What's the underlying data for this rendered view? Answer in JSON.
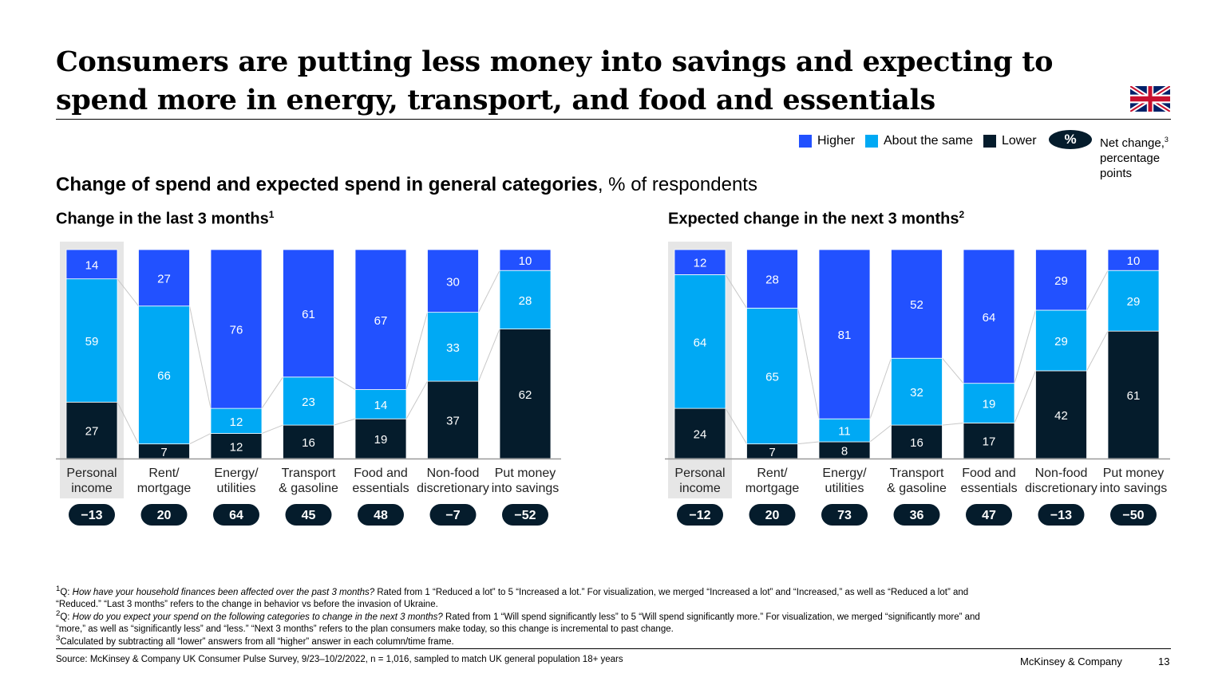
{
  "title": "Consumers are putting less money into savings and expecting to spend more in energy, transport, and food and essentials",
  "subtitle_bold": "Change of spend and expected spend in general categories",
  "subtitle_rest": ", % of respondents",
  "legend": {
    "higher": "Higher",
    "same": "About the same",
    "lower": "Lower",
    "pill": "%",
    "net_label": "Net change,",
    "net_sup": "3",
    "net_label2": "percentage points"
  },
  "colors": {
    "higher": "#2251ff",
    "same": "#00a9f4",
    "lower": "#051c2c",
    "highlight": "#e6e6e6",
    "connector": "#c8c8c8"
  },
  "chart_data": [
    {
      "type": "bar",
      "stacked": true,
      "title": "Change in the last 3 months",
      "title_sup": "1",
      "categories": [
        "Personal income",
        "Rent/ mortgage",
        "Energy/ utilities",
        "Transport & gasoline",
        "Food and essentials",
        "Non-food discretionary",
        "Put money into savings"
      ],
      "category_lines": [
        [
          "Personal",
          "income"
        ],
        [
          "Rent/",
          "mortgage"
        ],
        [
          "Energy/",
          "utilities"
        ],
        [
          "Transport",
          "& gasoline"
        ],
        [
          "Food and",
          "essentials"
        ],
        [
          "Non-food",
          "discretionary"
        ],
        [
          "Put money",
          "into savings"
        ]
      ],
      "highlighted_category": "Personal income",
      "series": [
        {
          "name": "Lower",
          "values": [
            27,
            7,
            12,
            16,
            19,
            37,
            62
          ]
        },
        {
          "name": "About the same",
          "values": [
            59,
            66,
            12,
            23,
            14,
            33,
            28
          ]
        },
        {
          "name": "Higher",
          "values": [
            14,
            27,
            76,
            61,
            67,
            30,
            10
          ]
        }
      ],
      "net_change": [
        "−13",
        "20",
        "64",
        "45",
        "48",
        "−7",
        "−52"
      ]
    },
    {
      "type": "bar",
      "stacked": true,
      "title": "Expected change in the next 3 months",
      "title_sup": "2",
      "categories": [
        "Personal income",
        "Rent/ mortgage",
        "Energy/ utilities",
        "Transport & gasoline",
        "Food and essentials",
        "Non-food discretionary",
        "Put money into savings"
      ],
      "category_lines": [
        [
          "Personal",
          "income"
        ],
        [
          "Rent/",
          "mortgage"
        ],
        [
          "Energy/",
          "utilities"
        ],
        [
          "Transport",
          "& gasoline"
        ],
        [
          "Food and",
          "essentials"
        ],
        [
          "Non-food",
          "discretionary"
        ],
        [
          "Put money",
          "into savings"
        ]
      ],
      "highlighted_category": "Personal income",
      "series": [
        {
          "name": "Lower",
          "values": [
            24,
            7,
            8,
            16,
            17,
            42,
            61
          ]
        },
        {
          "name": "About the same",
          "values": [
            64,
            65,
            11,
            32,
            19,
            29,
            29
          ]
        },
        {
          "name": "Higher",
          "values": [
            12,
            28,
            81,
            52,
            64,
            29,
            10
          ]
        }
      ],
      "net_change": [
        "−12",
        "20",
        "73",
        "36",
        "47",
        "−13",
        "−50"
      ]
    }
  ],
  "footnotes": [
    {
      "sup": "1",
      "prefix": "Q: ",
      "italic": "How have your household finances been affected over the past 3 months?",
      "text": " Rated from 1 “Reduced a lot” to 5 “Increased a lot.” For visualization, we merged “Increased a lot” and “Increased,” as well as “Reduced a lot” and “Reduced.” “Last 3 months” refers to the change in behavior vs before the invasion of Ukraine."
    },
    {
      "sup": "2",
      "prefix": "Q: ",
      "italic": "How do you expect your spend on the following categories to change in the next 3 months?",
      "text": " Rated from 1 “Will spend significantly less” to 5 “Will spend significantly more.” For visualization, we merged “significantly more” and “more,” as well as “significantly less” and “less.” “Next 3 months” refers to the plan consumers make today, so this change is incremental to past change."
    },
    {
      "sup": "3",
      "prefix": "",
      "italic": "",
      "text": "Calculated by subtracting all “lower” answers from all “higher” answer in each column/time frame."
    }
  ],
  "source": "Source: McKinsey & Company UK Consumer Pulse Survey, 9/23–10/2/2022, n = 1,016, sampled to match UK general population 18+ years",
  "brand": "McKinsey & Company",
  "page_number": "13",
  "flag_icon": "uk-flag-icon"
}
